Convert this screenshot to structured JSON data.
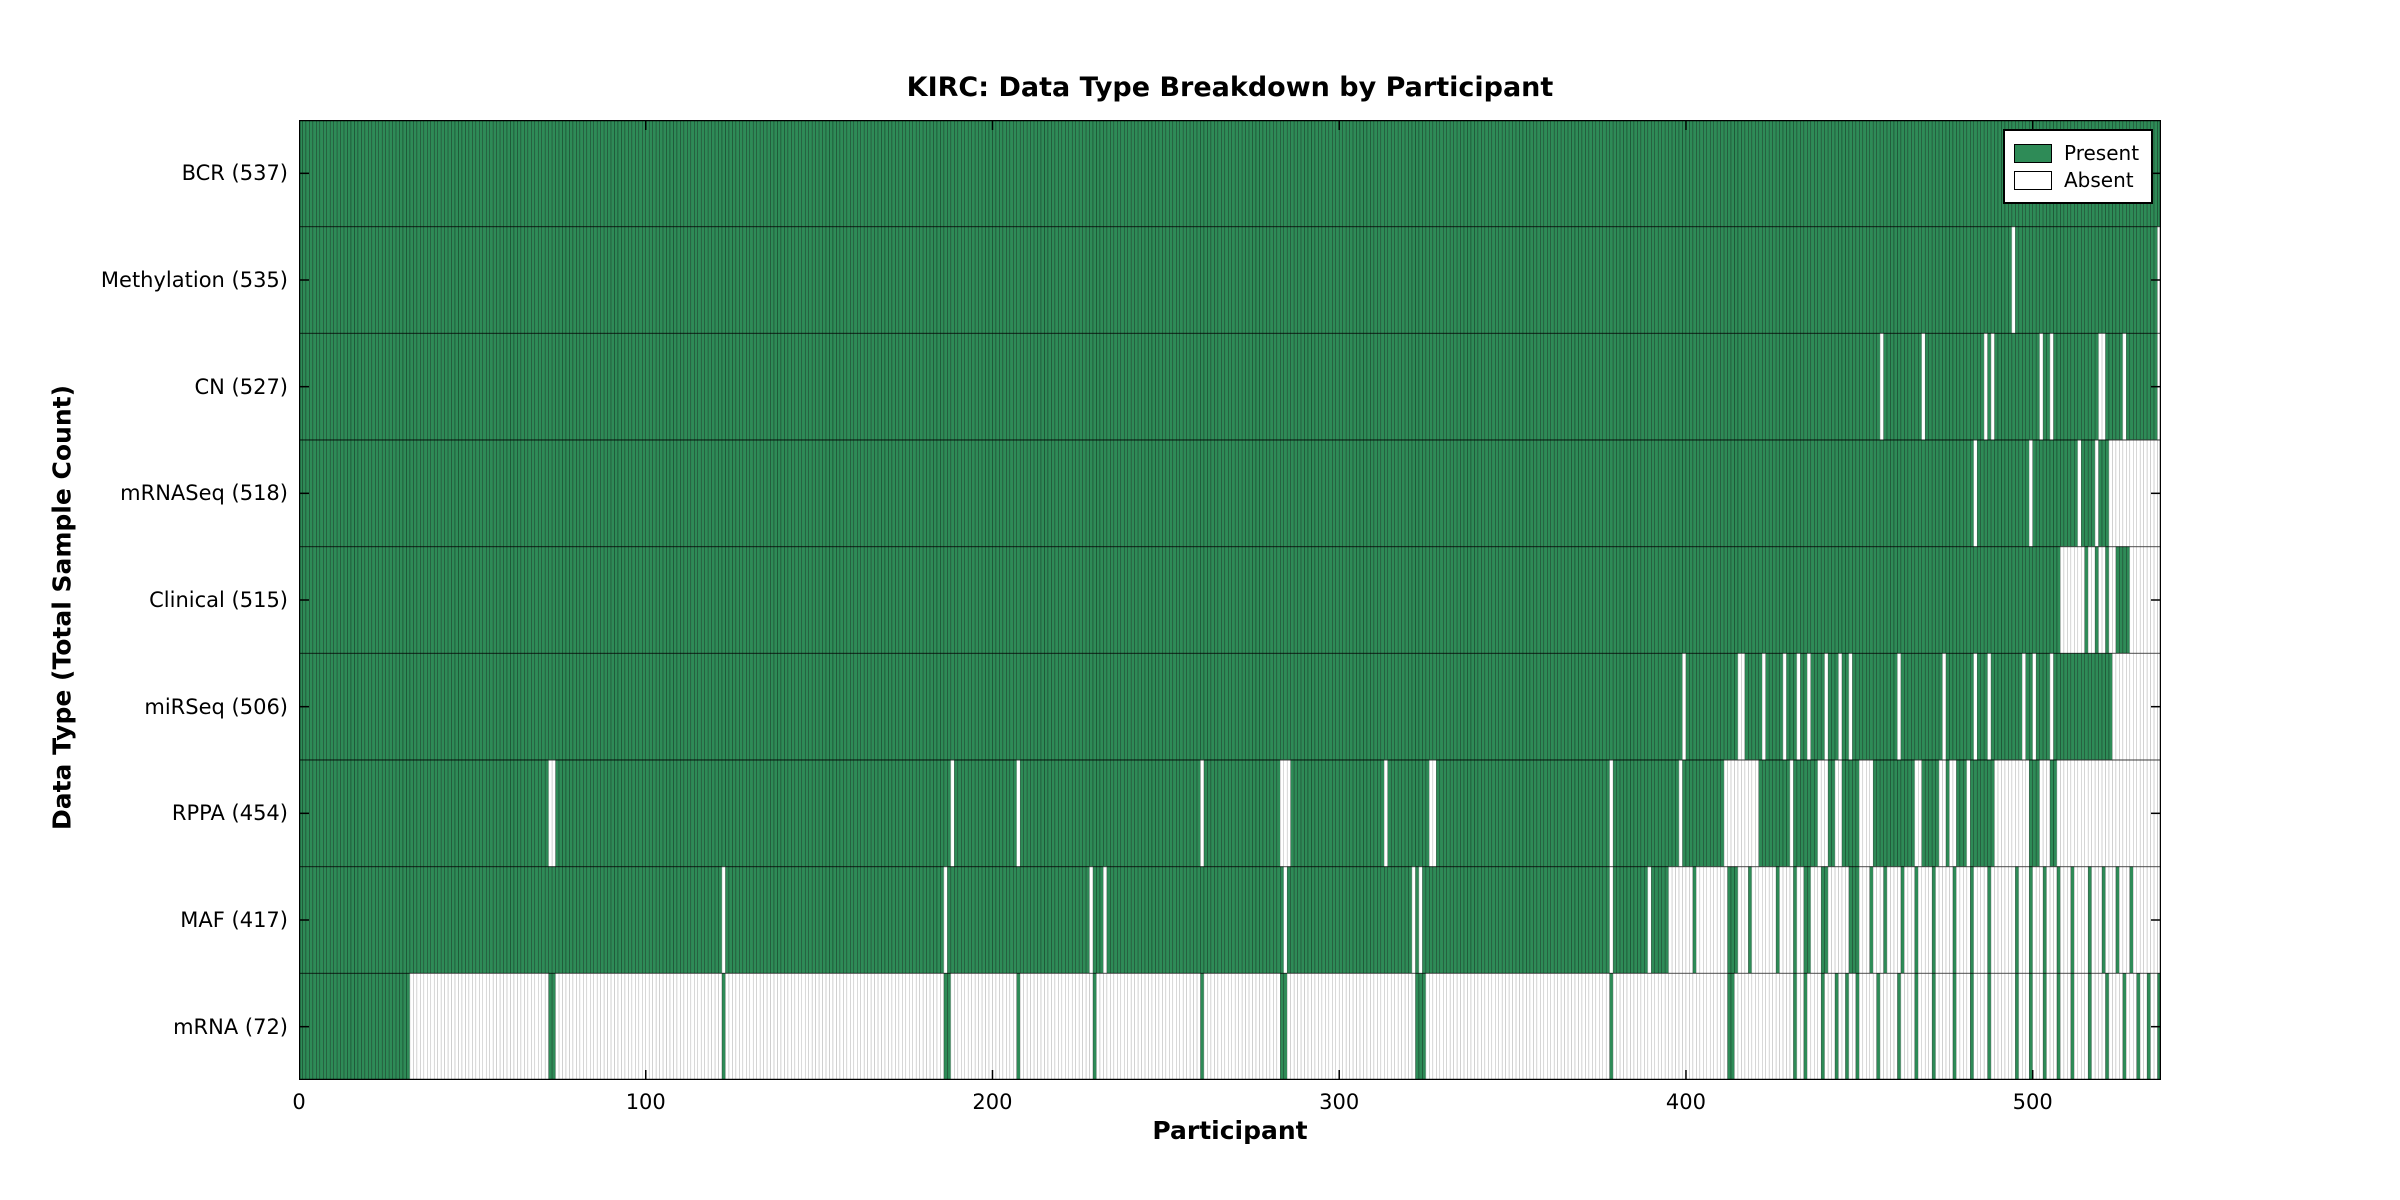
{
  "chart_data": {
    "type": "heatmap",
    "title": "KIRC: Data Type Breakdown by Participant",
    "xlabel": "Participant",
    "ylabel": "Data Type (Total Sample Count)",
    "n_participants": 537,
    "xlim": [
      0,
      537
    ],
    "x_ticks": [
      0,
      100,
      200,
      300,
      400,
      500
    ],
    "grid": false,
    "legend_position": "upper-right-inside",
    "legend": [
      {
        "label": "Present",
        "color": "#2e8b57"
      },
      {
        "label": "Absent",
        "color": "#ffffff"
      }
    ],
    "colors": {
      "present": "#2e8b57",
      "absent": "#ffffff",
      "present_cell_edge": "rgba(0,0,0,0.5)",
      "absent_cell_edge": "#b3b3b3",
      "row_divider": "rgba(0,0,0,0.55)",
      "frame": "#000000"
    },
    "rows": [
      {
        "label": "BCR (537)",
        "name": "BCR",
        "total": 537,
        "mode": "absent",
        "ranges": []
      },
      {
        "label": "Methylation (535)",
        "name": "Methylation",
        "total": 535,
        "mode": "absent",
        "ranges": [
          [
            494,
            494
          ],
          [
            536,
            536
          ]
        ]
      },
      {
        "label": "CN (527)",
        "name": "CN",
        "total": 527,
        "mode": "absent",
        "ranges": [
          [
            456,
            456
          ],
          [
            468,
            468
          ],
          [
            486,
            486
          ],
          [
            488,
            488
          ],
          [
            502,
            502
          ],
          [
            505,
            505
          ],
          [
            519,
            520
          ],
          [
            526,
            526
          ],
          [
            536,
            536
          ]
        ]
      },
      {
        "label": "mRNASeq (518)",
        "name": "mRNASeq",
        "total": 518,
        "mode": "absent",
        "ranges": [
          [
            483,
            483
          ],
          [
            499,
            499
          ],
          [
            513,
            513
          ],
          [
            518,
            518
          ],
          [
            522,
            536
          ]
        ]
      },
      {
        "label": "Clinical (515)",
        "name": "Clinical",
        "total": 515,
        "mode": "absent",
        "ranges": [
          [
            508,
            514
          ],
          [
            516,
            517
          ],
          [
            519,
            520
          ],
          [
            522,
            523
          ],
          [
            528,
            536
          ]
        ]
      },
      {
        "label": "miRSeq (506)",
        "name": "miRSeq",
        "total": 506,
        "mode": "absent",
        "ranges": [
          [
            399,
            399
          ],
          [
            415,
            416
          ],
          [
            422,
            422
          ],
          [
            428,
            428
          ],
          [
            432,
            432
          ],
          [
            435,
            435
          ],
          [
            440,
            440
          ],
          [
            444,
            444
          ],
          [
            447,
            447
          ],
          [
            461,
            461
          ],
          [
            474,
            474
          ],
          [
            483,
            483
          ],
          [
            487,
            487
          ],
          [
            497,
            497
          ],
          [
            500,
            500
          ],
          [
            505,
            505
          ],
          [
            523,
            536
          ]
        ]
      },
      {
        "label": "RPPA (454)",
        "name": "RPPA",
        "total": 454,
        "mode": "absent",
        "ranges": [
          [
            72,
            73
          ],
          [
            188,
            188
          ],
          [
            207,
            207
          ],
          [
            260,
            260
          ],
          [
            283,
            285
          ],
          [
            313,
            313
          ],
          [
            326,
            327
          ],
          [
            378,
            378
          ],
          [
            398,
            398
          ],
          [
            411,
            420
          ],
          [
            430,
            430
          ],
          [
            438,
            440
          ],
          [
            443,
            444
          ],
          [
            450,
            453
          ],
          [
            466,
            467
          ],
          [
            473,
            474
          ],
          [
            476,
            477
          ],
          [
            481,
            481
          ],
          [
            489,
            498
          ],
          [
            502,
            504
          ],
          [
            507,
            536
          ]
        ]
      },
      {
        "label": "MAF (417)",
        "name": "MAF",
        "total": 417,
        "mode": "absent",
        "ranges": [
          [
            122,
            122
          ],
          [
            186,
            186
          ],
          [
            228,
            228
          ],
          [
            232,
            232
          ],
          [
            284,
            284
          ],
          [
            321,
            321
          ],
          [
            323,
            323
          ],
          [
            378,
            378
          ],
          [
            389,
            389
          ],
          [
            395,
            401
          ],
          [
            403,
            411
          ],
          [
            415,
            417
          ],
          [
            419,
            425
          ],
          [
            427,
            430
          ],
          [
            432,
            433
          ],
          [
            436,
            438
          ],
          [
            441,
            446
          ],
          [
            450,
            452
          ],
          [
            454,
            456
          ],
          [
            458,
            461
          ],
          [
            463,
            465
          ],
          [
            467,
            470
          ],
          [
            472,
            476
          ],
          [
            478,
            481
          ],
          [
            483,
            486
          ],
          [
            488,
            494
          ],
          [
            496,
            498
          ],
          [
            500,
            502
          ],
          [
            504,
            506
          ],
          [
            508,
            510
          ],
          [
            512,
            515
          ],
          [
            517,
            519
          ],
          [
            521,
            523
          ],
          [
            525,
            527
          ],
          [
            529,
            536
          ]
        ]
      },
      {
        "label": "mRNA (72)",
        "name": "mRNA",
        "total": 72,
        "mode": "present",
        "ranges": [
          [
            0,
            31
          ],
          [
            72,
            73
          ],
          [
            122,
            122
          ],
          [
            186,
            187
          ],
          [
            207,
            207
          ],
          [
            229,
            229
          ],
          [
            260,
            260
          ],
          [
            283,
            284
          ],
          [
            322,
            324
          ],
          [
            378,
            378
          ],
          [
            412,
            413
          ],
          [
            431,
            431
          ],
          [
            434,
            434
          ],
          [
            439,
            439
          ],
          [
            443,
            443
          ],
          [
            446,
            446
          ],
          [
            449,
            449
          ],
          [
            455,
            455
          ],
          [
            461,
            461
          ],
          [
            466,
            466
          ],
          [
            471,
            471
          ],
          [
            477,
            477
          ],
          [
            482,
            482
          ],
          [
            487,
            487
          ],
          [
            495,
            495
          ],
          [
            499,
            499
          ],
          [
            503,
            503
          ],
          [
            507,
            507
          ],
          [
            511,
            511
          ],
          [
            516,
            516
          ],
          [
            521,
            521
          ],
          [
            526,
            526
          ],
          [
            530,
            530
          ],
          [
            533,
            533
          ],
          [
            536,
            536
          ]
        ]
      }
    ]
  }
}
